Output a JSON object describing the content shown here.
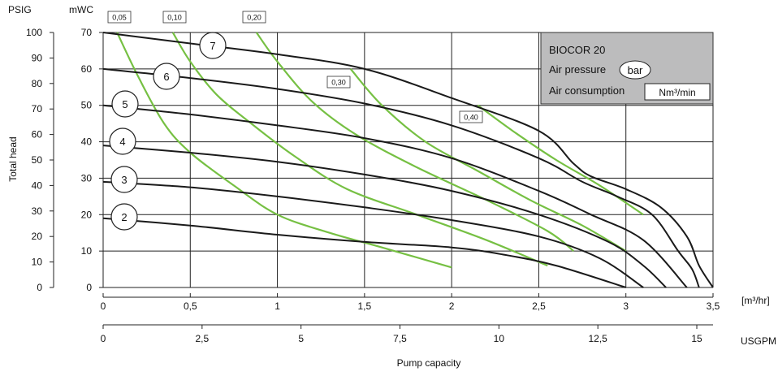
{
  "chart_data": {
    "type": "line",
    "title": "",
    "ylabel": "Total head",
    "xlabel": "Pump capacity",
    "y_axes": {
      "psig": {
        "unit": "PSIG",
        "ticks": [
          0,
          10,
          20,
          30,
          40,
          50,
          60,
          70,
          80,
          90,
          100
        ]
      },
      "mwc": {
        "unit": "mWC",
        "ticks": [
          0,
          10,
          20,
          30,
          40,
          50,
          60,
          70
        ]
      }
    },
    "x_axes": {
      "m3hr": {
        "unit": "[m³/hr]",
        "ticks": [
          "0",
          "0,5",
          "1",
          "1,5",
          "2",
          "2,5",
          "3",
          "3,5"
        ],
        "tick_values": [
          0,
          0.5,
          1,
          1.5,
          2,
          2.5,
          3,
          3.5
        ]
      },
      "usgpm": {
        "unit": "USGPM",
        "ticks": [
          "0",
          "2,5",
          "5",
          "7,5",
          "10",
          "12,5",
          "15"
        ],
        "tick_values": [
          0,
          2.5,
          5,
          7.5,
          10,
          12.5,
          15
        ]
      }
    },
    "xlim": [
      0,
      3.5
    ],
    "ylim": [
      0,
      70
    ],
    "grid": true,
    "legend_box": {
      "title": "BIOCOR 20",
      "line1": "Air pressure",
      "line1_badge": "bar",
      "line2": "Air consumption",
      "line2_badge": "Nm³/min",
      "background": "#bcbcbd"
    },
    "pressure_series": [
      {
        "name": "2",
        "color": "#1a1a1a",
        "points": [
          [
            0,
            19
          ],
          [
            0.5,
            17
          ],
          [
            1,
            14.5
          ],
          [
            1.5,
            12.5
          ],
          [
            2,
            11
          ],
          [
            2.3,
            9
          ],
          [
            2.6,
            6
          ],
          [
            3,
            0
          ]
        ]
      },
      {
        "name": "3",
        "color": "#1a1a1a",
        "points": [
          [
            0,
            29
          ],
          [
            0.5,
            27.5
          ],
          [
            1,
            25
          ],
          [
            1.5,
            22
          ],
          [
            2,
            18.5
          ],
          [
            2.5,
            14
          ],
          [
            2.85,
            8
          ],
          [
            3.1,
            0
          ]
        ]
      },
      {
        "name": "4",
        "color": "#1a1a1a",
        "points": [
          [
            0,
            39
          ],
          [
            0.5,
            37
          ],
          [
            1,
            34.5
          ],
          [
            1.5,
            31
          ],
          [
            2,
            26.5
          ],
          [
            2.5,
            20
          ],
          [
            2.9,
            12.5
          ],
          [
            3.1,
            6
          ],
          [
            3.23,
            0
          ]
        ]
      },
      {
        "name": "5",
        "color": "#1a1a1a",
        "points": [
          [
            0,
            50
          ],
          [
            0.5,
            47.5
          ],
          [
            1,
            44.5
          ],
          [
            1.5,
            41
          ],
          [
            2,
            35.5
          ],
          [
            2.5,
            26.5
          ],
          [
            2.8,
            20
          ],
          [
            3.1,
            13
          ],
          [
            3.35,
            0
          ]
        ]
      },
      {
        "name": "6",
        "color": "#1a1a1a",
        "points": [
          [
            0,
            60
          ],
          [
            0.5,
            57.5
          ],
          [
            1,
            54.5
          ],
          [
            1.5,
            50.5
          ],
          [
            2,
            44.5
          ],
          [
            2.5,
            35.5
          ],
          [
            2.75,
            29
          ],
          [
            2.95,
            25
          ],
          [
            3.15,
            20
          ],
          [
            3.3,
            10
          ],
          [
            3.38,
            5
          ],
          [
            3.42,
            0
          ]
        ]
      },
      {
        "name": "7",
        "color": "#1a1a1a",
        "points": [
          [
            0,
            70
          ],
          [
            0.5,
            67
          ],
          [
            1,
            64
          ],
          [
            1.5,
            60
          ],
          [
            2,
            52
          ],
          [
            2.5,
            43
          ],
          [
            2.7,
            34
          ],
          [
            2.8,
            30.5
          ],
          [
            3,
            27
          ],
          [
            3.2,
            22
          ],
          [
            3.35,
            14
          ],
          [
            3.42,
            6
          ],
          [
            3.5,
            0
          ]
        ]
      }
    ],
    "consumption_series": [
      {
        "name": "0,05",
        "color": "#76c043",
        "points": [
          [
            0.08,
            70
          ],
          [
            0.2,
            58
          ],
          [
            0.35,
            45
          ],
          [
            0.5,
            37
          ],
          [
            0.75,
            28
          ],
          [
            1,
            20
          ],
          [
            1.3,
            15
          ],
          [
            1.6,
            11
          ],
          [
            2,
            5.5
          ]
        ]
      },
      {
        "name": "0,10",
        "color": "#76c043",
        "points": [
          [
            0.4,
            70
          ],
          [
            0.5,
            62
          ],
          [
            0.65,
            53
          ],
          [
            0.85,
            45
          ],
          [
            1.1,
            36
          ],
          [
            1.4,
            27
          ],
          [
            1.8,
            20
          ],
          [
            2.2,
            13
          ],
          [
            2.55,
            6
          ]
        ]
      },
      {
        "name": "0,20",
        "color": "#76c043",
        "points": [
          [
            0.88,
            70
          ],
          [
            1,
            62
          ],
          [
            1.2,
            51
          ],
          [
            1.45,
            42
          ],
          [
            1.8,
            33
          ],
          [
            2.2,
            24
          ],
          [
            2.55,
            15.5
          ],
          [
            2.7,
            10
          ]
        ]
      },
      {
        "name": "0,30",
        "color": "#76c043",
        "points": [
          [
            1.42,
            60
          ],
          [
            1.6,
            50
          ],
          [
            1.85,
            40
          ],
          [
            2.15,
            32
          ],
          [
            2.45,
            24
          ],
          [
            2.75,
            17
          ],
          [
            3,
            10
          ]
        ]
      },
      {
        "name": "0,40",
        "color": "#76c043",
        "points": [
          [
            2.15,
            50
          ],
          [
            2.35,
            43
          ],
          [
            2.6,
            35
          ],
          [
            2.85,
            28
          ],
          [
            3.1,
            20
          ]
        ]
      }
    ],
    "pressure_labels": [
      "2",
      "3",
      "4",
      "5",
      "6",
      "7"
    ],
    "consumption_labels": [
      "0,05",
      "0,10",
      "0,20",
      "0,30",
      "0,40"
    ]
  }
}
